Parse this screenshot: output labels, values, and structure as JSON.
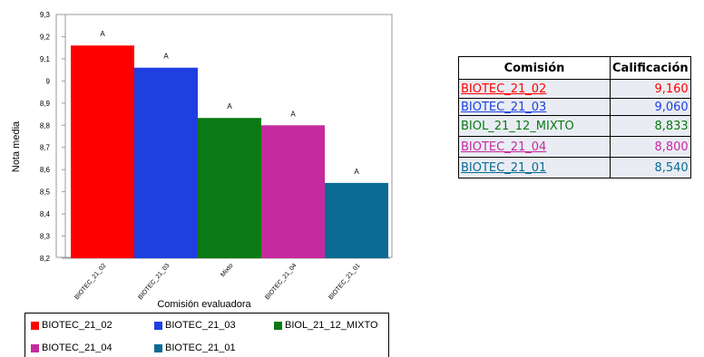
{
  "chart_data": {
    "type": "bar",
    "xlabel": "Comisión evaluadora",
    "ylabel": "Nota media",
    "ylim": [
      8.2,
      9.3
    ],
    "yticks": [
      "8,2",
      "8,3",
      "8,4",
      "8,5",
      "8,6",
      "8,7",
      "8,8",
      "8,9",
      "9",
      "9,1",
      "9,2",
      "9,3"
    ],
    "categories": [
      "BIOTEC_21_02",
      "BIOTEC_21_03",
      "Mixto",
      "BIOTEC_21_04",
      "BIOTEC_21_01"
    ],
    "values": [
      9.16,
      9.06,
      8.833,
      8.8,
      8.54
    ],
    "bar_labels": [
      "A",
      "A",
      "A",
      "A",
      "A"
    ],
    "colors": [
      "#ff0000",
      "#1f3fe0",
      "#0a7a14",
      "#c72a9e",
      "#0b6b93"
    ],
    "legend": [
      "BIOTEC_21_02",
      "BIOTEC_21_03",
      "BIOL_21_12_MIXTO",
      "BIOTEC_21_04",
      "BIOTEC_21_01"
    ],
    "legend_placement": "bottom",
    "grid": false
  },
  "table": {
    "headers": [
      "Comisión",
      "Calificación"
    ],
    "rows": [
      {
        "name": "BIOTEC_21_02",
        "value": "9,160",
        "color": "#ff0000"
      },
      {
        "name": "BIOTEC_21_03",
        "value": "9,060",
        "color": "#1f3fe0"
      },
      {
        "name": "BIOL_21_12_MIXTO",
        "value": "8,833",
        "color": "#0a7a14"
      },
      {
        "name": "BIOTEC_21_04",
        "value": "8,800",
        "color": "#c72a9e"
      },
      {
        "name": "BIOTEC_21_01",
        "value": "8,540",
        "color": "#0b6b93"
      }
    ]
  }
}
